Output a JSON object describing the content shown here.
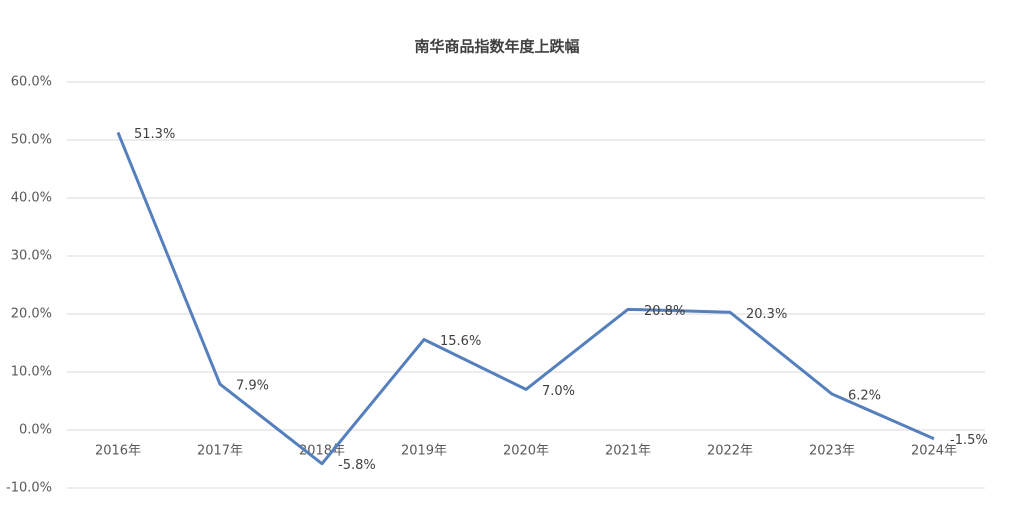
{
  "chart_data": {
    "type": "line",
    "title": "南华商品指数年度上跌幅",
    "categories": [
      "2016年",
      "2017年",
      "2018年",
      "2019年",
      "2020年",
      "2021年",
      "2022年",
      "2023年",
      "2024年"
    ],
    "series": [
      {
        "name": "南华商品指数年度上跌幅",
        "color": "#5580bd",
        "values": [
          51.3,
          7.9,
          -5.8,
          15.6,
          7.0,
          20.8,
          20.3,
          6.2,
          -1.5
        ],
        "value_labels": [
          "51.3%",
          "7.9%",
          "-5.8%",
          "15.6%",
          "7.0%",
          "20.8%",
          "20.3%",
          "6.2%",
          "-1.5%"
        ]
      }
    ],
    "ylim": [
      -10,
      60
    ],
    "yticks": [
      {
        "value": -10,
        "label": "-10.0%"
      },
      {
        "value": 0,
        "label": "0.0%"
      },
      {
        "value": 10,
        "label": "10.0%"
      },
      {
        "value": 20,
        "label": "20.0%"
      },
      {
        "value": 30,
        "label": "30.0%"
      },
      {
        "value": 40,
        "label": "40.0%"
      },
      {
        "value": 50,
        "label": "50.0%"
      },
      {
        "value": 60,
        "label": "60.0%"
      }
    ],
    "grid": true
  }
}
